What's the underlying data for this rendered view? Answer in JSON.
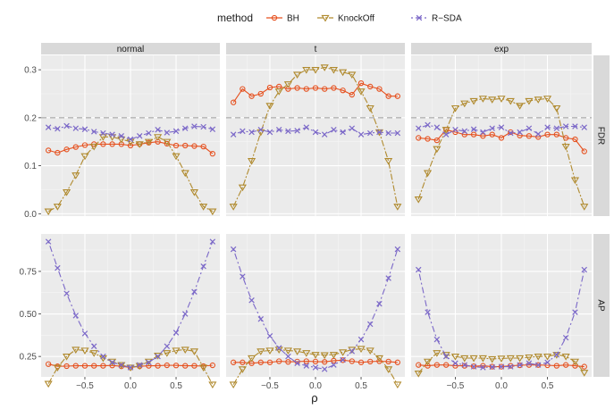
{
  "chart_data": {
    "type": "line",
    "legend_title": "method",
    "legend_position": "top",
    "xlabel": "ρ",
    "facet_columns": [
      "normal",
      "t",
      "exp"
    ],
    "facet_rows": [
      "FDR",
      "AP"
    ],
    "x": [
      -0.9,
      -0.8,
      -0.7,
      -0.6,
      -0.5,
      -0.4,
      -0.3,
      -0.2,
      -0.1,
      0.0,
      0.1,
      0.2,
      0.3,
      0.4,
      0.5,
      0.6,
      0.7,
      0.8,
      0.9
    ],
    "xticks": [
      -0.5,
      0.0,
      0.5
    ],
    "xtick_labels": [
      "−0.5",
      "0.0",
      "0.5"
    ],
    "xlim": [
      -0.98,
      0.98
    ],
    "rows": [
      {
        "name": "FDR",
        "ylim": [
          -0.005,
          0.33
        ],
        "yticks": [
          0.0,
          0.1,
          0.2,
          0.3
        ],
        "ytick_labels": [
          "0.0",
          "0.1",
          "0.2",
          "0.3"
        ],
        "reference_line": 0.2
      },
      {
        "name": "AP",
        "ylim": [
          0.13,
          0.97
        ],
        "yticks": [
          0.25,
          0.5,
          0.75
        ],
        "ytick_labels": [
          "0.25",
          "0.50",
          "0.75"
        ]
      }
    ],
    "methods": [
      {
        "name": "BH",
        "color": "#e6501e",
        "dash": "",
        "marker": "circle"
      },
      {
        "name": "KnockOff",
        "color": "#b08a2e",
        "dash": "7,2,2,2",
        "marker": "triangle-down"
      },
      {
        "name": "R−SDA",
        "color": "#7b68c8",
        "dash": "2,3,7,3",
        "marker": "x"
      }
    ],
    "panels": [
      {
        "row": "FDR",
        "col": "normal",
        "series": [
          {
            "name": "BH",
            "values": [
              0.132,
              0.127,
              0.134,
              0.139,
              0.143,
              0.145,
              0.145,
              0.145,
              0.145,
              0.142,
              0.145,
              0.148,
              0.15,
              0.146,
              0.142,
              0.142,
              0.141,
              0.14,
              0.125
            ]
          },
          {
            "name": "KnockOff",
            "values": [
              0.005,
              0.015,
              0.045,
              0.08,
              0.12,
              0.14,
              0.16,
              0.16,
              0.155,
              0.15,
              0.145,
              0.15,
              0.16,
              0.15,
              0.12,
              0.085,
              0.045,
              0.015,
              0.005
            ]
          },
          {
            "name": "R−SDA",
            "values": [
              0.18,
              0.177,
              0.183,
              0.178,
              0.176,
              0.171,
              0.168,
              0.165,
              0.162,
              0.155,
              0.162,
              0.168,
              0.175,
              0.169,
              0.172,
              0.178,
              0.182,
              0.181,
              0.176
            ]
          }
        ]
      },
      {
        "row": "FDR",
        "col": "t",
        "series": [
          {
            "name": "BH",
            "values": [
              0.232,
              0.26,
              0.245,
              0.25,
              0.263,
              0.265,
              0.26,
              0.262,
              0.26,
              0.262,
              0.26,
              0.262,
              0.257,
              0.248,
              0.272,
              0.265,
              0.26,
              0.245,
              0.245
            ]
          },
          {
            "name": "KnockOff",
            "values": [
              0.015,
              0.055,
              0.11,
              0.17,
              0.225,
              0.255,
              0.27,
              0.29,
              0.3,
              0.3,
              0.305,
              0.3,
              0.295,
              0.29,
              0.255,
              0.22,
              0.17,
              0.11,
              0.015
            ]
          },
          {
            "name": "R−SDA",
            "values": [
              0.165,
              0.172,
              0.17,
              0.175,
              0.17,
              0.175,
              0.172,
              0.173,
              0.18,
              0.17,
              0.165,
              0.175,
              0.17,
              0.178,
              0.165,
              0.168,
              0.17,
              0.168,
              0.168
            ]
          }
        ]
      },
      {
        "row": "FDR",
        "col": "exp",
        "series": [
          {
            "name": "BH",
            "values": [
              0.158,
              0.156,
              0.153,
              0.175,
              0.17,
              0.165,
              0.165,
              0.162,
              0.165,
              0.158,
              0.17,
              0.163,
              0.162,
              0.16,
              0.165,
              0.165,
              0.158,
              0.155,
              0.13
            ]
          },
          {
            "name": "KnockOff",
            "values": [
              0.03,
              0.085,
              0.135,
              0.175,
              0.22,
              0.23,
              0.235,
              0.24,
              0.238,
              0.24,
              0.235,
              0.225,
              0.235,
              0.238,
              0.24,
              0.22,
              0.14,
              0.07,
              0.015
            ]
          },
          {
            "name": "R−SDA",
            "values": [
              0.178,
              0.185,
              0.18,
              0.165,
              0.175,
              0.172,
              0.176,
              0.17,
              0.178,
              0.18,
              0.168,
              0.17,
              0.178,
              0.166,
              0.18,
              0.178,
              0.182,
              0.182,
              0.18
            ]
          }
        ]
      },
      {
        "row": "AP",
        "col": "normal",
        "series": [
          {
            "name": "BH",
            "values": [
              0.205,
              0.192,
              0.193,
              0.195,
              0.195,
              0.195,
              0.195,
              0.197,
              0.192,
              0.185,
              0.192,
              0.195,
              0.195,
              0.198,
              0.197,
              0.195,
              0.195,
              0.193,
              0.198
            ]
          },
          {
            "name": "KnockOff",
            "values": [
              0.09,
              0.185,
              0.25,
              0.29,
              0.285,
              0.27,
              0.24,
              0.22,
              0.2,
              0.185,
              0.195,
              0.22,
              0.255,
              0.27,
              0.285,
              0.29,
              0.28,
              0.185,
              0.085
            ]
          },
          {
            "name": "R−SDA",
            "values": [
              0.925,
              0.77,
              0.62,
              0.49,
              0.385,
              0.31,
              0.25,
              0.215,
              0.2,
              0.185,
              0.2,
              0.215,
              0.25,
              0.31,
              0.39,
              0.5,
              0.63,
              0.78,
              0.925
            ]
          }
        ]
      },
      {
        "row": "AP",
        "col": "t",
        "series": [
          {
            "name": "BH",
            "values": [
              0.215,
              0.215,
              0.21,
              0.215,
              0.215,
              0.222,
              0.218,
              0.22,
              0.222,
              0.22,
              0.218,
              0.225,
              0.228,
              0.222,
              0.215,
              0.22,
              0.222,
              0.22,
              0.215
            ]
          },
          {
            "name": "KnockOff",
            "values": [
              0.085,
              0.175,
              0.24,
              0.28,
              0.285,
              0.29,
              0.285,
              0.28,
              0.27,
              0.26,
              0.258,
              0.26,
              0.275,
              0.29,
              0.295,
              0.285,
              0.24,
              0.175,
              0.085
            ]
          },
          {
            "name": "R−SDA",
            "values": [
              0.88,
              0.72,
              0.58,
              0.47,
              0.37,
              0.3,
              0.25,
              0.21,
              0.195,
              0.185,
              0.175,
              0.2,
              0.23,
              0.28,
              0.35,
              0.44,
              0.56,
              0.71,
              0.88
            ]
          }
        ]
      },
      {
        "row": "AP",
        "col": "exp",
        "series": [
          {
            "name": "BH",
            "values": [
              0.2,
              0.195,
              0.2,
              0.2,
              0.195,
              0.195,
              0.192,
              0.195,
              0.19,
              0.19,
              0.195,
              0.198,
              0.2,
              0.2,
              0.198,
              0.195,
              0.2,
              0.195,
              0.19
            ]
          },
          {
            "name": "KnockOff",
            "values": [
              0.15,
              0.22,
              0.27,
              0.26,
              0.25,
              0.24,
              0.24,
              0.24,
              0.235,
              0.238,
              0.24,
              0.24,
              0.245,
              0.25,
              0.25,
              0.26,
              0.25,
              0.22,
              0.155
            ]
          },
          {
            "name": "R−SDA",
            "values": [
              0.76,
              0.51,
              0.35,
              0.25,
              0.21,
              0.2,
              0.19,
              0.185,
              0.188,
              0.19,
              0.19,
              0.2,
              0.21,
              0.2,
              0.215,
              0.26,
              0.36,
              0.51,
              0.76
            ]
          }
        ]
      }
    ]
  }
}
